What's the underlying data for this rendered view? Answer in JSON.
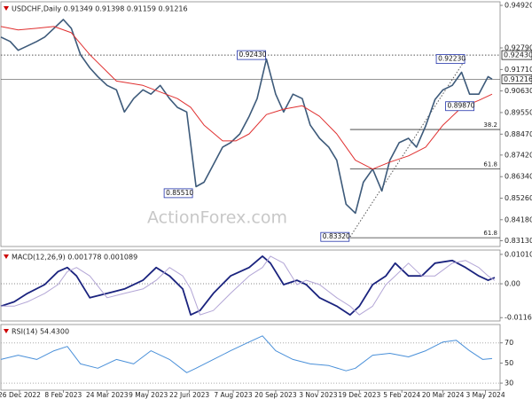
{
  "chart_data": [
    {
      "type": "line",
      "title": "USDCHF,Daily  0.91349 0.91398 0.91159 0.91216",
      "watermark": "ActionForex.com",
      "xlim": [
        0,
        376
      ],
      "ylim": [
        0.8284,
        0.951
      ],
      "yticks": [
        {
          "value": 0.9492,
          "label": "0.94920"
        },
        {
          "value": 0.9279,
          "label": "0.92790"
        },
        {
          "value": 0.9171,
          "label": "0.91710"
        },
        {
          "value": 0.9063,
          "label": "0.90630"
        },
        {
          "value": 0.8955,
          "label": "0.89550"
        },
        {
          "value": 0.8847,
          "label": "0.88470"
        },
        {
          "value": 0.8742,
          "label": "0.87420"
        },
        {
          "value": 0.8634,
          "label": "0.86340"
        },
        {
          "value": 0.8526,
          "label": "0.85260"
        },
        {
          "value": 0.8418,
          "label": "0.84180"
        },
        {
          "value": 0.8313,
          "label": "0.83130"
        }
      ],
      "grid": false,
      "series": [
        {
          "name": "USDCHF",
          "color": "#3d5a7a",
          "width": 1.6,
          "x": [
            0,
            7,
            13,
            20,
            27,
            33,
            40,
            47,
            53,
            60,
            67,
            73,
            80,
            87,
            93,
            100,
            107,
            113,
            120,
            127,
            133,
            140,
            147,
            153,
            160,
            167,
            173,
            180,
            187,
            193,
            200,
            207,
            213,
            220,
            227,
            233,
            240,
            247,
            253,
            260,
            267,
            273,
            280,
            287,
            293,
            300,
            307,
            313,
            320,
            327,
            333,
            340,
            347,
            353,
            360,
            367,
            370
          ],
          "values": [
            0.9333,
            0.9311,
            0.9267,
            0.9289,
            0.9311,
            0.9333,
            0.9377,
            0.9421,
            0.9377,
            0.9245,
            0.9179,
            0.9135,
            0.9091,
            0.9069,
            0.8958,
            0.9025,
            0.9069,
            0.9047,
            0.9091,
            0.9025,
            0.8981,
            0.8958,
            0.8584,
            0.8606,
            0.8694,
            0.8782,
            0.8804,
            0.8848,
            0.8936,
            0.9025,
            0.9223,
            0.9047,
            0.8958,
            0.9047,
            0.9025,
            0.8892,
            0.8826,
            0.8782,
            0.8716,
            0.8496,
            0.8451,
            0.8606,
            0.8672,
            0.8562,
            0.8716,
            0.8804,
            0.8826,
            0.8782,
            0.8888,
            0.902,
            0.9069,
            0.9091,
            0.9157,
            0.9047,
            0.9047,
            0.9135,
            0.9122
          ]
        },
        {
          "name": "MA",
          "color": "#e03030",
          "width": 1,
          "x": [
            0,
            13,
            27,
            40,
            53,
            67,
            87,
            107,
            133,
            143,
            153,
            167,
            177,
            187,
            200,
            213,
            227,
            240,
            253,
            267,
            280,
            293,
            307,
            320,
            333,
            347,
            360,
            370
          ],
          "values": [
            0.9386,
            0.9369,
            0.9377,
            0.9386,
            0.9355,
            0.9245,
            0.9113,
            0.9091,
            0.9025,
            0.8981,
            0.8892,
            0.8813,
            0.8813,
            0.8848,
            0.8945,
            0.8972,
            0.8989,
            0.8936,
            0.8848,
            0.8716,
            0.8672,
            0.8707,
            0.8738,
            0.8782,
            0.8892,
            0.8981,
            0.9016,
            0.9047
          ]
        }
      ],
      "annotations": [
        {
          "label": "0.85510",
          "value": 0.8551,
          "x": 145
        },
        {
          "label": "0.92430",
          "value": 0.9243,
          "x": 200
        },
        {
          "label": "0.83320",
          "value": 0.8332,
          "x": 263
        },
        {
          "label": "0.92230",
          "value": 0.9223,
          "x": 350
        },
        {
          "label": "0.89870",
          "value": 0.8987,
          "x": 357
        }
      ],
      "fib_levels": [
        {
          "label": "38.2",
          "value": 0.887
        },
        {
          "label": "61.8",
          "value": 0.8672
        },
        {
          "label": "61.8",
          "value": 0.8328
        }
      ],
      "last_price": {
        "value": 0.91216,
        "label": "0.91216"
      }
    },
    {
      "type": "line",
      "title": "MACD(12,26,9) 0.001778 0.001089",
      "xlim": [
        0,
        376
      ],
      "ylim": [
        -0.0128,
        0.0116
      ],
      "yticks": [
        0.010101,
        {
          "value": 0,
          "label": "0.00"
        },
        -0.011645
      ],
      "grid": false,
      "zero_line": true,
      "series": [
        {
          "name": "MACD",
          "color": "#1a237e",
          "width": 1.8,
          "x": [
            0,
            10,
            20,
            33,
            43,
            50,
            57,
            67,
            80,
            93,
            107,
            117,
            127,
            137,
            143,
            150,
            160,
            173,
            187,
            197,
            203,
            213,
            223,
            230,
            240,
            253,
            263,
            270,
            280,
            290,
            297,
            307,
            317,
            327,
            340,
            350,
            360,
            367,
            372
          ],
          "values": [
            -0.0077,
            -0.0062,
            -0.0033,
            -0.0003,
            0.0042,
            0.0056,
            0.0027,
            -0.0048,
            -0.0033,
            -0.0018,
            0.0012,
            0.0056,
            0.0027,
            -0.0018,
            -0.0107,
            -0.0092,
            -0.0033,
            0.0027,
            0.0056,
            0.0095,
            0.0071,
            -0.0003,
            0.0012,
            -0.0003,
            -0.0048,
            -0.0077,
            -0.0107,
            -0.0077,
            -0.0003,
            0.0027,
            0.0071,
            0.0027,
            0.0027,
            0.0071,
            0.008,
            0.0056,
            0.0027,
            0.0012,
            0.0021
          ]
        },
        {
          "name": "Signal",
          "color": "#b3a6d6",
          "width": 1,
          "x": [
            0,
            10,
            20,
            33,
            43,
            50,
            57,
            67,
            80,
            93,
            107,
            117,
            127,
            137,
            143,
            150,
            160,
            173,
            187,
            197,
            203,
            213,
            223,
            230,
            240,
            253,
            263,
            270,
            280,
            290,
            297,
            307,
            317,
            327,
            340,
            350,
            360,
            367,
            372
          ],
          "values": [
            -0.0077,
            -0.0077,
            -0.0062,
            -0.0033,
            -0.0003,
            0.0042,
            0.0056,
            0.0027,
            -0.0048,
            -0.0033,
            -0.0018,
            0.0012,
            0.0056,
            0.0027,
            -0.0018,
            -0.0107,
            -0.0092,
            -0.0033,
            0.0027,
            0.0056,
            0.0095,
            0.0071,
            -0.0003,
            0.0012,
            -0.0003,
            -0.0048,
            -0.0077,
            -0.0107,
            -0.0077,
            -0.0003,
            0.0027,
            0.0071,
            0.0027,
            0.0027,
            0.0071,
            0.008,
            0.0056,
            0.0027,
            0.0011
          ]
        }
      ]
    },
    {
      "type": "line",
      "title": "RSI(14) 54.4300",
      "xlim": [
        0,
        376
      ],
      "ylim": [
        23,
        88.3
      ],
      "yticks": [
        70,
        50,
        30
      ],
      "grid": false,
      "dotted_levels": [
        70,
        30
      ],
      "xticks": [
        {
          "value": 14,
          "label": "26 Dec 2022"
        },
        {
          "value": 47,
          "label": "8 Feb 2023"
        },
        {
          "value": 80,
          "label": "24 Mar 2023"
        },
        {
          "value": 111,
          "label": "9 May 2023"
        },
        {
          "value": 142,
          "label": "22 Jun 2023"
        },
        {
          "value": 175,
          "label": "7 Aug 2023"
        },
        {
          "value": 207,
          "label": "20 Sep 2023"
        },
        {
          "value": 239,
          "label": "3 Nov 2023"
        },
        {
          "value": 270,
          "label": "19 Dec 2023"
        },
        {
          "value": 302,
          "label": "5 Feb 2024"
        },
        {
          "value": 333,
          "label": "20 Mar 2024"
        },
        {
          "value": 365,
          "label": "3 May 2024"
        }
      ],
      "series": [
        {
          "name": "RSI",
          "color": "#4a90d9",
          "width": 1,
          "x": [
            0,
            13,
            27,
            40,
            50,
            60,
            73,
            87,
            100,
            113,
            127,
            140,
            147,
            160,
            173,
            187,
            197,
            207,
            220,
            233,
            247,
            260,
            267,
            280,
            293,
            307,
            320,
            333,
            343,
            353,
            363,
            370
          ],
          "values": [
            53.5,
            57.8,
            53.5,
            62.2,
            66.5,
            49.1,
            44.8,
            53.5,
            49.1,
            62.2,
            53.5,
            40.4,
            44.8,
            53.5,
            62.2,
            70.9,
            77.0,
            62.2,
            53.5,
            49.1,
            47.4,
            42.2,
            44.8,
            57.8,
            59.6,
            56.1,
            62.2,
            70.9,
            72.6,
            62.2,
            53.5,
            54.4
          ]
        }
      ]
    }
  ]
}
